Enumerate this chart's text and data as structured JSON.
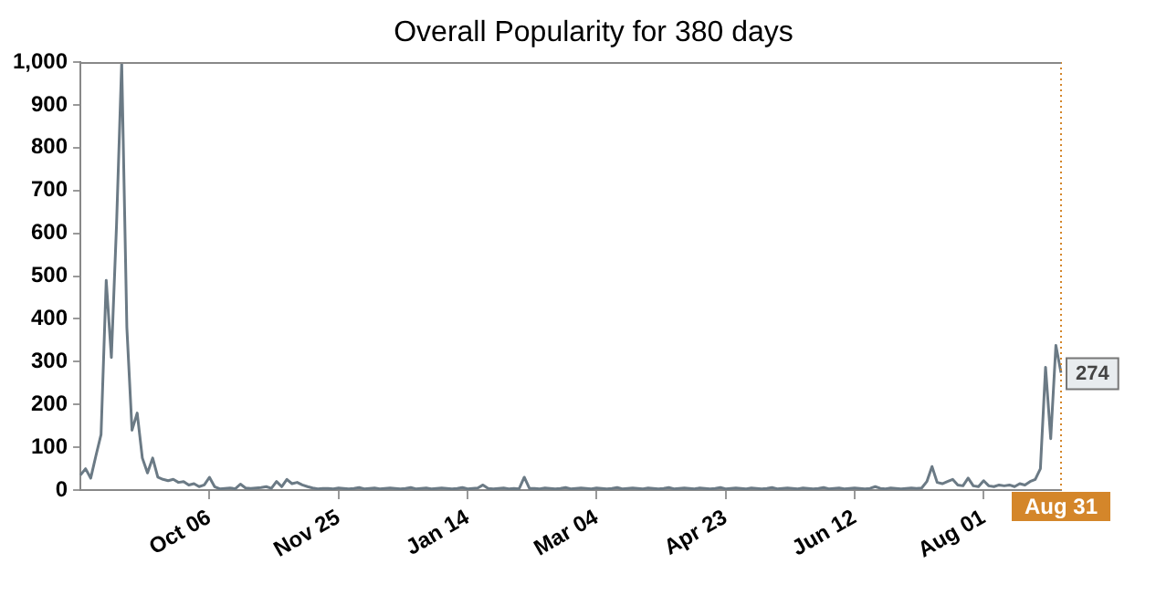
{
  "chart_data": {
    "type": "line",
    "title": "Overall Popularity for 380 days",
    "categories": [
      null,
      null,
      null,
      null,
      null,
      null,
      null,
      null,
      null,
      null,
      null,
      null,
      null,
      null,
      null,
      null,
      null,
      null,
      null,
      null,
      null,
      null,
      null,
      null,
      null,
      "Oct 06",
      null,
      null,
      null,
      null,
      null,
      null,
      null,
      null,
      null,
      null,
      null,
      null,
      null,
      null,
      null,
      null,
      null,
      null,
      null,
      null,
      null,
      null,
      null,
      null,
      "Nov 25",
      null,
      null,
      null,
      null,
      null,
      null,
      null,
      null,
      null,
      null,
      null,
      null,
      null,
      null,
      null,
      null,
      null,
      null,
      null,
      null,
      null,
      null,
      null,
      null,
      "Jan 14",
      null,
      null,
      null,
      null,
      null,
      null,
      null,
      null,
      null,
      null,
      null,
      null,
      null,
      null,
      null,
      null,
      null,
      null,
      null,
      null,
      null,
      null,
      null,
      null,
      "Mar 04",
      null,
      null,
      null,
      null,
      null,
      null,
      null,
      null,
      null,
      null,
      null,
      null,
      null,
      null,
      null,
      null,
      null,
      null,
      null,
      null,
      null,
      null,
      null,
      null,
      "Apr 23",
      null,
      null,
      null,
      null,
      null,
      null,
      null,
      null,
      null,
      null,
      null,
      null,
      null,
      null,
      null,
      null,
      null,
      null,
      null,
      null,
      null,
      null,
      null,
      null,
      "Jun 12",
      null,
      null,
      null,
      null,
      null,
      null,
      null,
      null,
      null,
      null,
      null,
      null,
      null,
      null,
      null,
      null,
      null,
      null,
      null,
      null,
      null,
      null,
      null,
      null,
      "Aug 01",
      null,
      null,
      null,
      null,
      null,
      null,
      null,
      null,
      null,
      null,
      null,
      null,
      null,
      null,
      "Aug 31"
    ],
    "series": [
      {
        "color": "#6b7a85",
        "values": [
          35,
          50,
          28,
          80,
          130,
          490,
          310,
          620,
          1000,
          380,
          140,
          180,
          75,
          40,
          75,
          30,
          25,
          22,
          25,
          18,
          20,
          12,
          15,
          8,
          12,
          30,
          8,
          3,
          4,
          5,
          3,
          14,
          5,
          4,
          5,
          6,
          8,
          4,
          20,
          8,
          25,
          15,
          18,
          12,
          8,
          5,
          3,
          4,
          4,
          3,
          5,
          4,
          3,
          4,
          6,
          3,
          4,
          5,
          3,
          4,
          5,
          4,
          3,
          4,
          6,
          3,
          4,
          5,
          3,
          4,
          5,
          4,
          3,
          4,
          6,
          3,
          4,
          5,
          12,
          4,
          3,
          4,
          5,
          3,
          4,
          3,
          30,
          4,
          4,
          3,
          5,
          4,
          3,
          4,
          6,
          3,
          4,
          5,
          4,
          3,
          5,
          4,
          3,
          4,
          6,
          3,
          4,
          5,
          4,
          3,
          5,
          4,
          3,
          4,
          6,
          3,
          4,
          5,
          4,
          3,
          5,
          4,
          3,
          4,
          6,
          3,
          4,
          5,
          4,
          3,
          5,
          4,
          3,
          4,
          6,
          3,
          4,
          5,
          4,
          3,
          5,
          4,
          3,
          4,
          6,
          3,
          4,
          5,
          3,
          4,
          5,
          4,
          3,
          4,
          8,
          4,
          3,
          5,
          4,
          3,
          4,
          5,
          4,
          5,
          20,
          55,
          18,
          15,
          20,
          25,
          12,
          10,
          28,
          10,
          8,
          22,
          10,
          8,
          12,
          10,
          12,
          8,
          15,
          12,
          20,
          25,
          50,
          287,
          120,
          338,
          274
        ]
      }
    ],
    "ylim": [
      0,
      1000
    ],
    "yticks": [
      0,
      100,
      200,
      300,
      400,
      500,
      600,
      700,
      800,
      900,
      {
        "value": 1000,
        "label": "1,000"
      }
    ],
    "ref_lines": [
      {
        "axis": "x",
        "value": "Aug 31",
        "color": "#d4862a",
        "line_style": "dotted"
      }
    ],
    "annotations": [
      {
        "text": "274",
        "x": "Aug 31",
        "y": 274
      }
    ],
    "grid": false,
    "legend": false,
    "marker": "none",
    "line_style": "solid"
  }
}
